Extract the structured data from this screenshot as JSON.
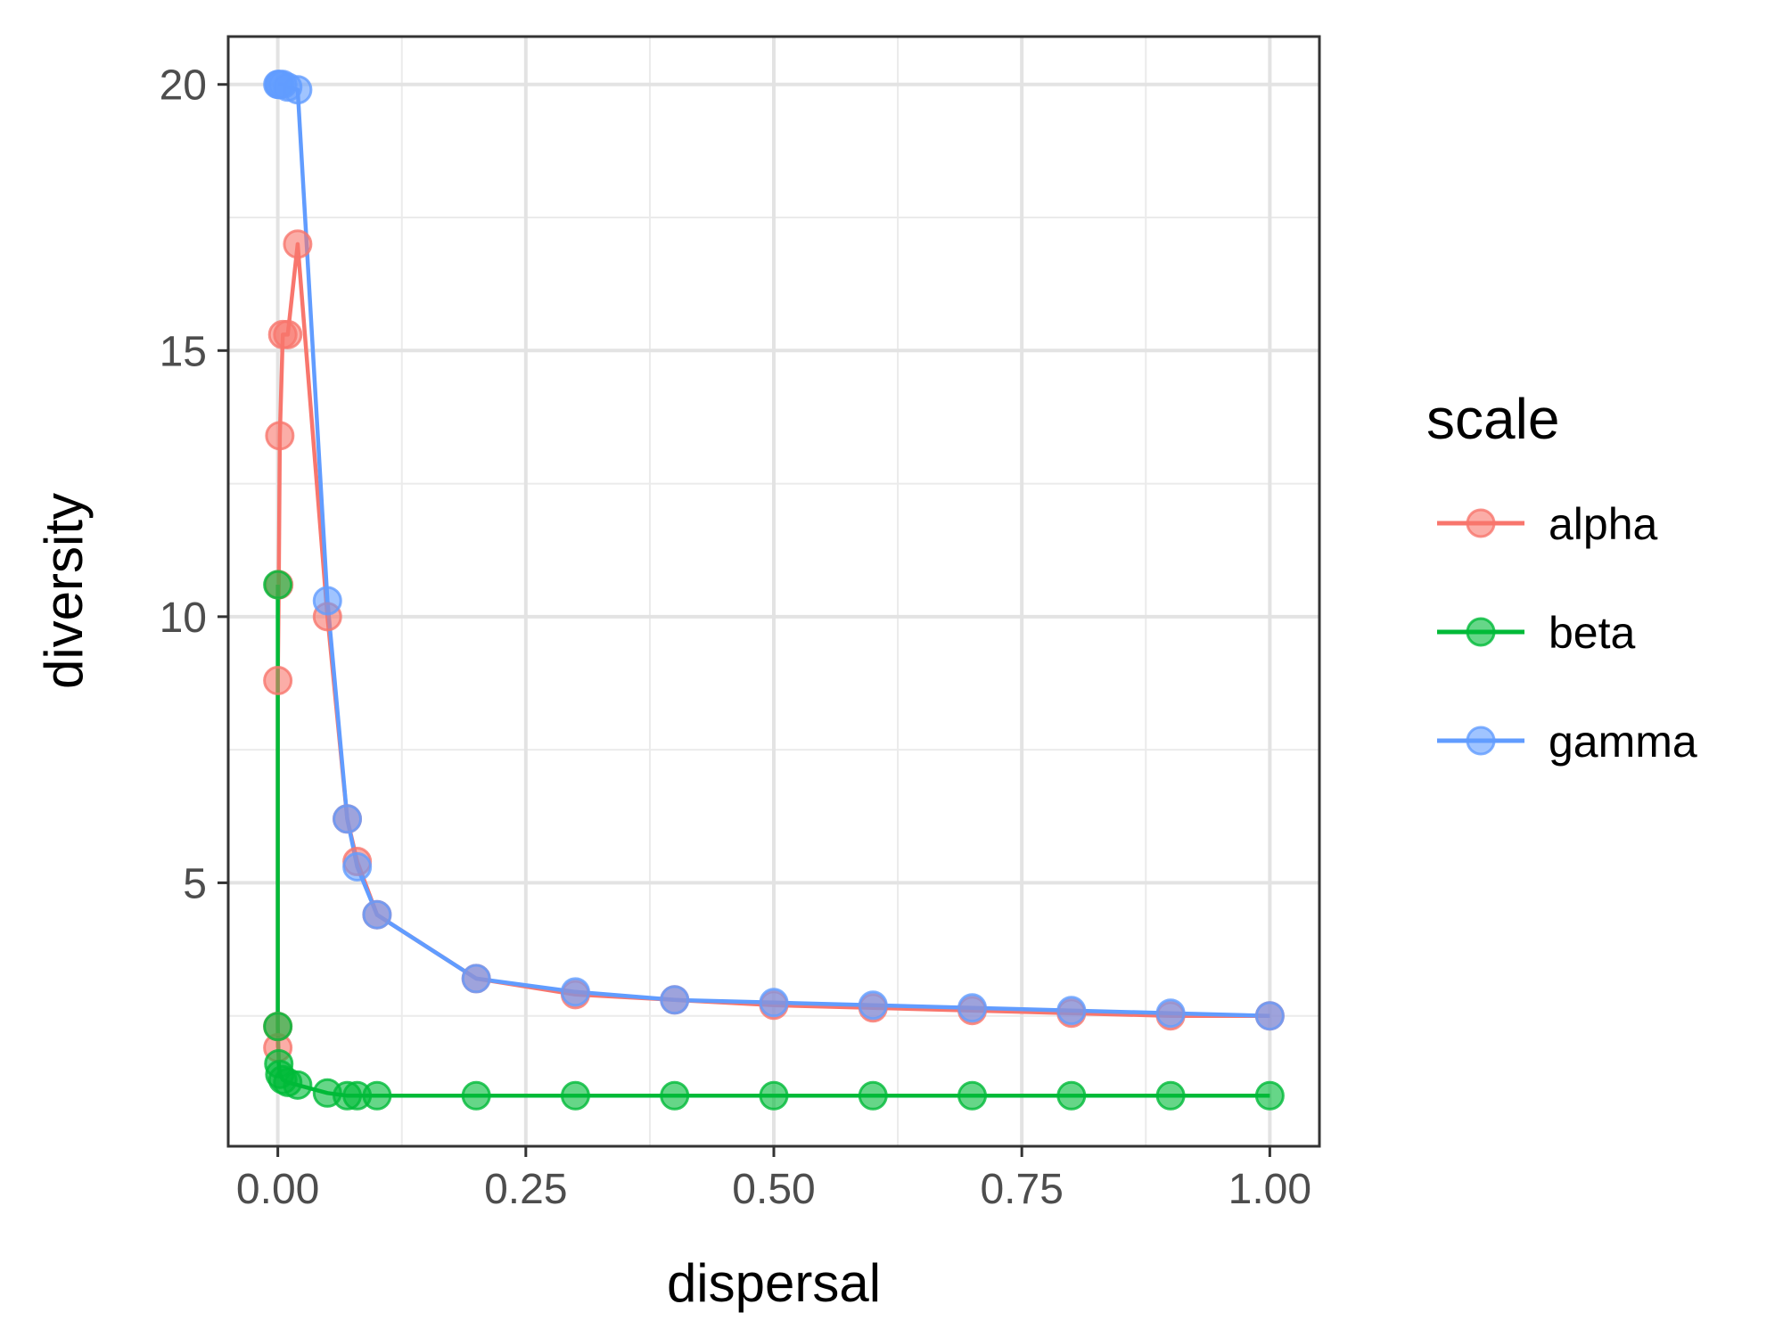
{
  "chart_data": {
    "type": "line",
    "xlabel": "dispersal",
    "ylabel": "diversity",
    "xlim": [
      -0.05,
      1.05
    ],
    "ylim": [
      0.05,
      20.9
    ],
    "x_ticks": [
      0.0,
      0.25,
      0.5,
      0.75,
      1.0
    ],
    "x_tick_labels": [
      "0.00",
      "0.25",
      "0.50",
      "0.75",
      "1.00"
    ],
    "y_ticks": [
      5,
      10,
      15,
      20
    ],
    "y_tick_labels": [
      "5",
      "10",
      "15",
      "20"
    ],
    "grid": true,
    "legend_position": "right",
    "legend": {
      "title": "scale",
      "items": [
        {
          "label": "alpha",
          "color": "#F8766D"
        },
        {
          "label": "beta",
          "color": "#00BA38"
        },
        {
          "label": "gamma",
          "color": "#619CFF"
        }
      ]
    },
    "series": [
      {
        "name": "alpha",
        "color": "#F8766D",
        "x": [
          0.0,
          0.0,
          0.0,
          0.001,
          0.002,
          0.005,
          0.01,
          0.02,
          0.05,
          0.07,
          0.08,
          0.1,
          0.2,
          0.3,
          0.4,
          0.5,
          0.6,
          0.7,
          0.8,
          0.9,
          1.0
        ],
        "y": [
          1.9,
          2.3,
          8.8,
          10.6,
          13.4,
          15.3,
          15.3,
          17.0,
          10.0,
          6.2,
          5.4,
          4.4,
          3.2,
          2.9,
          2.8,
          2.7,
          2.65,
          2.6,
          2.55,
          2.5,
          2.5
        ]
      },
      {
        "name": "beta",
        "color": "#00BA38",
        "x": [
          0.0,
          0.0,
          0.001,
          0.002,
          0.005,
          0.01,
          0.02,
          0.05,
          0.07,
          0.08,
          0.1,
          0.2,
          0.3,
          0.4,
          0.5,
          0.6,
          0.7,
          0.8,
          0.9,
          1.0
        ],
        "y": [
          10.6,
          2.3,
          1.6,
          1.4,
          1.3,
          1.25,
          1.2,
          1.05,
          1.0,
          1.0,
          1.0,
          1.0,
          1.0,
          1.0,
          1.0,
          1.0,
          1.0,
          1.0,
          1.0,
          1.0
        ]
      },
      {
        "name": "gamma",
        "color": "#619CFF",
        "x": [
          0.0,
          0.001,
          0.002,
          0.005,
          0.01,
          0.02,
          0.05,
          0.07,
          0.08,
          0.1,
          0.2,
          0.3,
          0.4,
          0.5,
          0.6,
          0.7,
          0.8,
          0.9,
          1.0
        ],
        "y": [
          20.0,
          20.0,
          20.0,
          20.0,
          19.95,
          19.9,
          10.3,
          6.2,
          5.3,
          4.4,
          3.2,
          2.95,
          2.8,
          2.75,
          2.7,
          2.65,
          2.6,
          2.55,
          2.5
        ]
      }
    ]
  }
}
